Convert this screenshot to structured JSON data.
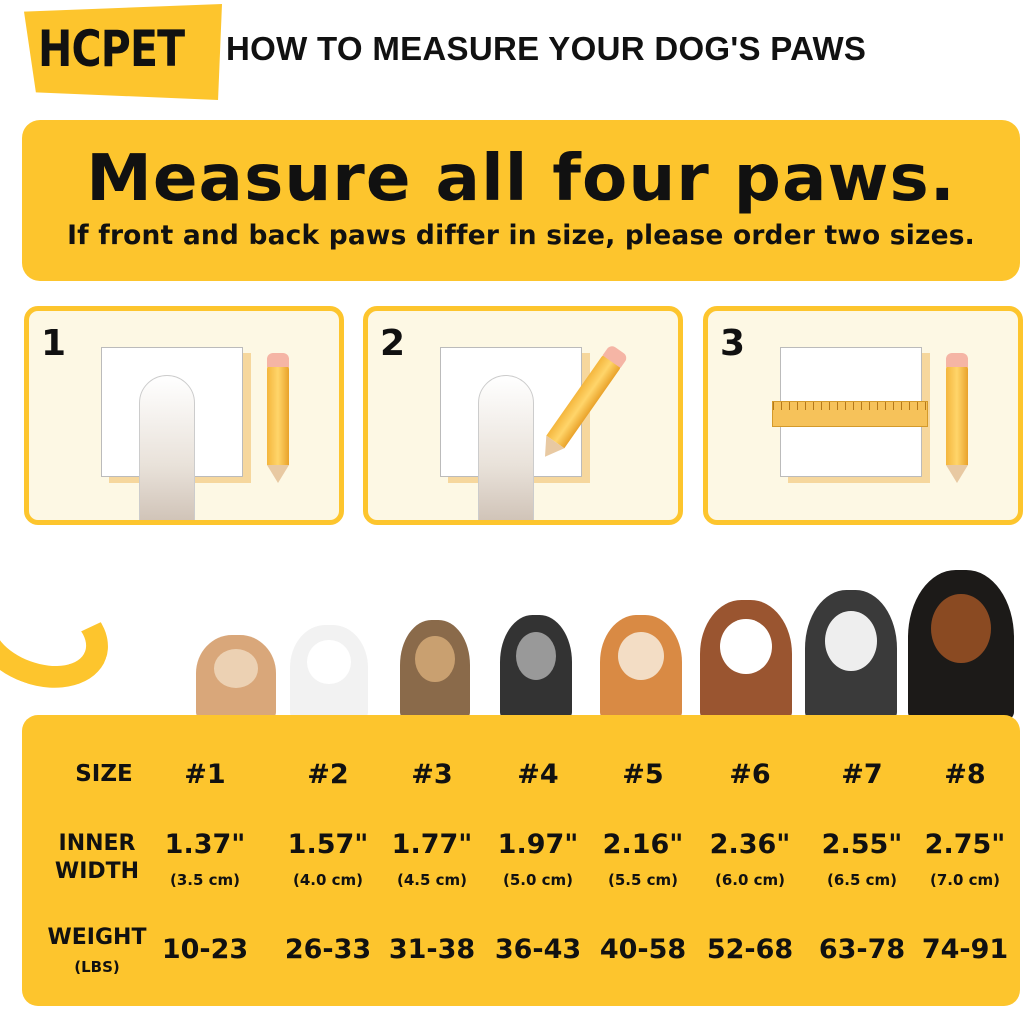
{
  "header": {
    "brand": "HCPET",
    "title": "HOW TO MEASURE YOUR DOG'S PAWS"
  },
  "banner": {
    "headline": "Measure all four paws.",
    "subtitle": "If front and back paws differ in size, please order two sizes."
  },
  "steps": [
    {
      "number": "1",
      "icon": "paw-on-paper-with-pencil"
    },
    {
      "number": "2",
      "icon": "trace-paw-outline-with-pencil"
    },
    {
      "number": "3",
      "icon": "measure-outline-with-ruler"
    }
  ],
  "colors": {
    "accent": "#fdc52d",
    "panel": "#fdf8e4",
    "text": "#111111"
  },
  "size_chart": {
    "row_labels": {
      "size": "SIZE",
      "inner_width_1": "INNER",
      "inner_width_2": "WIDTH",
      "weight_1": "WEIGHT",
      "weight_2": "(LBS)"
    },
    "sizes": [
      {
        "size": "#1",
        "inches": "1.37\"",
        "cm": "(3.5 cm)",
        "weight": "10-23"
      },
      {
        "size": "#2",
        "inches": "1.57\"",
        "cm": "(4.0 cm)",
        "weight": "26-33"
      },
      {
        "size": "#3",
        "inches": "1.77\"",
        "cm": "(4.5 cm)",
        "weight": "31-38"
      },
      {
        "size": "#4",
        "inches": "1.97\"",
        "cm": "(5.0 cm)",
        "weight": "36-43"
      },
      {
        "size": "#5",
        "inches": "2.16\"",
        "cm": "(5.5 cm)",
        "weight": "40-58"
      },
      {
        "size": "#6",
        "inches": "2.36\"",
        "cm": "(6.0 cm)",
        "weight": "52-68"
      },
      {
        "size": "#7",
        "inches": "2.55\"",
        "cm": "(6.5 cm)",
        "weight": "63-78"
      },
      {
        "size": "#8",
        "inches": "2.75\"",
        "cm": "(7.0 cm)",
        "weight": "74-91"
      }
    ]
  }
}
